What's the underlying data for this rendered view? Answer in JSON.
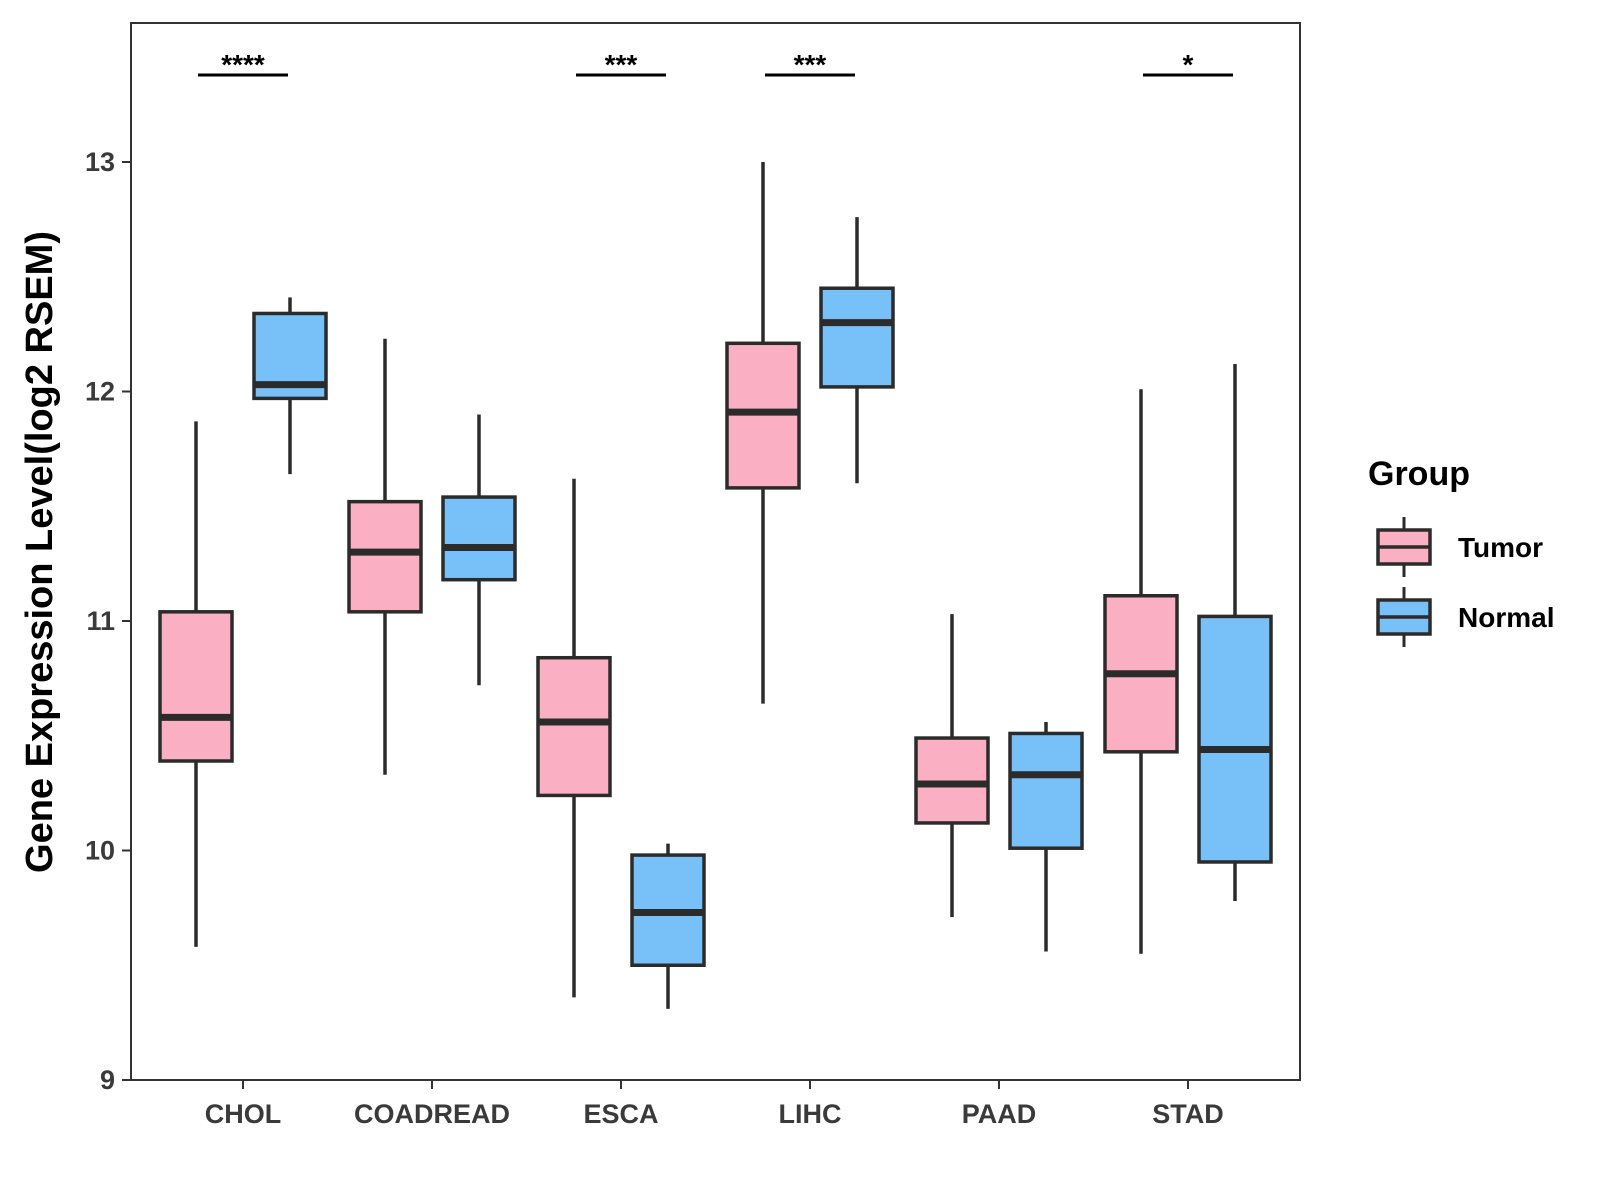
{
  "chart_data": {
    "type": "boxplot",
    "ylabel": "Gene Expression Level(log2 RSEM)",
    "xlabel": "",
    "ylim": [
      9,
      13.6
    ],
    "yticks": [
      9,
      10,
      11,
      12,
      13
    ],
    "categories": [
      "CHOL",
      "COADREAD",
      "ESCA",
      "LIHC",
      "PAAD",
      "STAD"
    ],
    "legend": {
      "title": "Group",
      "position": "right",
      "entries": [
        {
          "name": "Tumor",
          "color": "#FAB0C2"
        },
        {
          "name": "Normal",
          "color": "#78C1F8"
        }
      ]
    },
    "series": [
      {
        "name": "Tumor",
        "color": "#FAB0C2",
        "boxes": [
          {
            "category": "CHOL",
            "whisker_low": 9.58,
            "q1": 10.39,
            "median": 10.58,
            "q3": 11.04,
            "whisker_high": 11.87
          },
          {
            "category": "COADREAD",
            "whisker_low": 10.33,
            "q1": 11.04,
            "median": 11.3,
            "q3": 11.52,
            "whisker_high": 12.23
          },
          {
            "category": "ESCA",
            "whisker_low": 9.36,
            "q1": 10.24,
            "median": 10.56,
            "q3": 10.84,
            "whisker_high": 11.62
          },
          {
            "category": "LIHC",
            "whisker_low": 10.64,
            "q1": 11.58,
            "median": 11.91,
            "q3": 12.21,
            "whisker_high": 13.0
          },
          {
            "category": "PAAD",
            "whisker_low": 9.71,
            "q1": 10.12,
            "median": 10.29,
            "q3": 10.49,
            "whisker_high": 11.03
          },
          {
            "category": "STAD",
            "whisker_low": 9.55,
            "q1": 10.43,
            "median": 10.77,
            "q3": 11.11,
            "whisker_high": 12.01
          }
        ]
      },
      {
        "name": "Normal",
        "color": "#78C1F8",
        "boxes": [
          {
            "category": "CHOL",
            "whisker_low": 11.64,
            "q1": 11.97,
            "median": 12.03,
            "q3": 12.34,
            "whisker_high": 12.41
          },
          {
            "category": "COADREAD",
            "whisker_low": 10.72,
            "q1": 11.18,
            "median": 11.32,
            "q3": 11.54,
            "whisker_high": 11.9
          },
          {
            "category": "ESCA",
            "whisker_low": 9.31,
            "q1": 9.5,
            "median": 9.73,
            "q3": 9.98,
            "whisker_high": 10.03
          },
          {
            "category": "LIHC",
            "whisker_low": 11.6,
            "q1": 12.02,
            "median": 12.3,
            "q3": 12.45,
            "whisker_high": 12.76
          },
          {
            "category": "PAAD",
            "whisker_low": 9.56,
            "q1": 10.01,
            "median": 10.33,
            "q3": 10.51,
            "whisker_high": 10.56
          },
          {
            "category": "STAD",
            "whisker_low": 9.78,
            "q1": 9.95,
            "median": 10.44,
            "q3": 11.02,
            "whisker_high": 12.12
          }
        ]
      }
    ],
    "significance": [
      {
        "category": "CHOL",
        "label": "****"
      },
      {
        "category": "ESCA",
        "label": "***"
      },
      {
        "category": "LIHC",
        "label": "***"
      },
      {
        "category": "STAD",
        "label": "*"
      }
    ]
  }
}
